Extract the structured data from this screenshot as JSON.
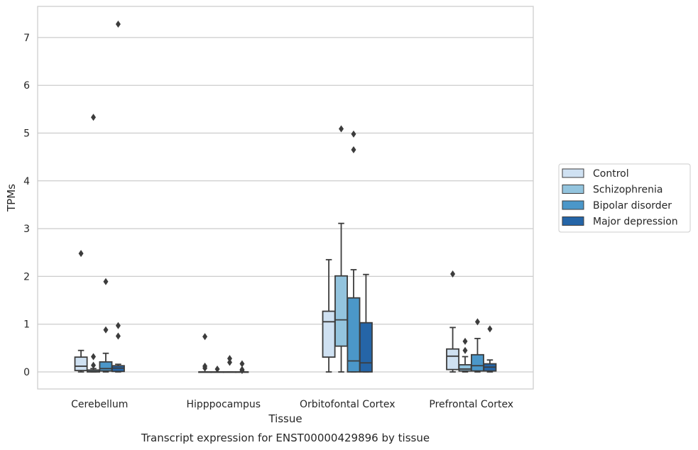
{
  "caption": "Transcript expression for ENST00000429896 by tissue",
  "chart_data": {
    "type": "box",
    "xlabel": "Tissue",
    "ylabel": "TPMs",
    "ylim": [
      -0.35,
      7.65
    ],
    "yticks": [
      0,
      1,
      2,
      3,
      4,
      5,
      6,
      7
    ],
    "grid": true,
    "legend_position": "right",
    "categories": [
      "Cerebellum",
      "Hipppocampus",
      "Orbitofontal Cortex",
      "Prefrontal Cortex"
    ],
    "series": [
      {
        "name": "Control",
        "color": "#cfe1f2",
        "boxes": [
          {
            "whisker_low": 0,
            "q1": 0.03,
            "median": 0.12,
            "q3": 0.31,
            "whisker_high": 0.45,
            "outliers": [
              2.48
            ]
          },
          {
            "whisker_low": 0,
            "q1": 0,
            "median": 0,
            "q3": 0,
            "whisker_high": 0,
            "outliers": [
              0.74,
              0.12,
              0.08
            ]
          },
          {
            "whisker_low": 0,
            "q1": 0.31,
            "median": 1.05,
            "q3": 1.27,
            "whisker_high": 2.35,
            "outliers": []
          },
          {
            "whisker_low": 0,
            "q1": 0.05,
            "median": 0.33,
            "q3": 0.48,
            "whisker_high": 0.93,
            "outliers": [
              2.05
            ]
          }
        ]
      },
      {
        "name": "Schizophrenia",
        "color": "#93c4de",
        "boxes": [
          {
            "whisker_low": 0,
            "q1": 0,
            "median": 0.01,
            "q3": 0.04,
            "whisker_high": 0.07,
            "outliers": [
              5.33,
              0.32,
              0.14
            ]
          },
          {
            "whisker_low": 0,
            "q1": 0,
            "median": 0,
            "q3": 0,
            "whisker_high": 0,
            "outliers": [
              0.06
            ]
          },
          {
            "whisker_low": 0,
            "q1": 0.54,
            "median": 1.09,
            "q3": 2.01,
            "whisker_high": 3.11,
            "outliers": [
              5.09
            ]
          },
          {
            "whisker_low": 0,
            "q1": 0.02,
            "median": 0.06,
            "q3": 0.15,
            "whisker_high": 0.32,
            "outliers": [
              0.64,
              0.45
            ]
          }
        ]
      },
      {
        "name": "Bipolar disorder",
        "color": "#4b97c9",
        "boxes": [
          {
            "whisker_low": 0,
            "q1": 0.02,
            "median": 0.07,
            "q3": 0.21,
            "whisker_high": 0.39,
            "outliers": [
              1.89,
              0.88
            ]
          },
          {
            "whisker_low": 0,
            "q1": 0,
            "median": 0,
            "q3": 0,
            "whisker_high": 0,
            "outliers": [
              0.28,
              0.2
            ]
          },
          {
            "whisker_low": 0,
            "q1": 0,
            "median": 0.23,
            "q3": 1.55,
            "whisker_high": 2.14,
            "outliers": [
              4.98,
              4.65
            ]
          },
          {
            "whisker_low": 0,
            "q1": 0.02,
            "median": 0.13,
            "q3": 0.36,
            "whisker_high": 0.7,
            "outliers": [
              1.05
            ]
          }
        ]
      },
      {
        "name": "Major depression",
        "color": "#2565a7",
        "boxes": [
          {
            "whisker_low": 0,
            "q1": 0.01,
            "median": 0.08,
            "q3": 0.13,
            "whisker_high": 0.16,
            "outliers": [
              7.28,
              0.97,
              0.75
            ]
          },
          {
            "whisker_low": 0,
            "q1": 0,
            "median": 0,
            "q3": 0,
            "whisker_high": 0,
            "outliers": [
              0.17,
              0.05,
              0.03
            ]
          },
          {
            "whisker_low": 0,
            "q1": 0,
            "median": 0.19,
            "q3": 1.03,
            "whisker_high": 2.04,
            "outliers": []
          },
          {
            "whisker_low": 0,
            "q1": 0.02,
            "median": 0.1,
            "q3": 0.17,
            "whisker_high": 0.25,
            "outliers": [
              0.9
            ]
          }
        ]
      }
    ]
  }
}
